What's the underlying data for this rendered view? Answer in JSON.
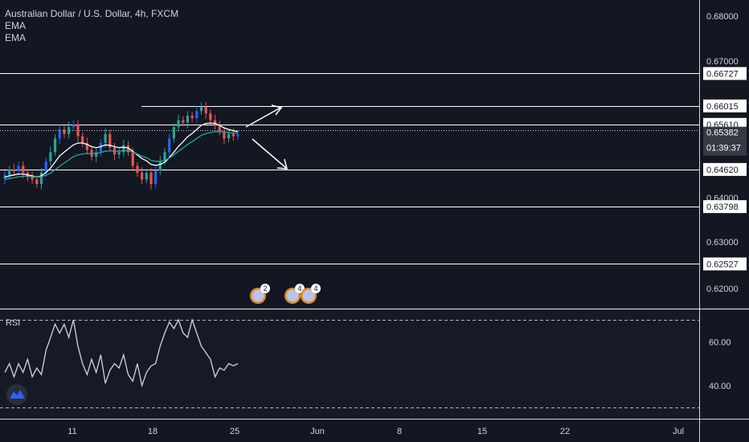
{
  "legend": {
    "title": "Australian Dollar / U.S. Dollar, 4h, FXCM",
    "indicator_1": "EMA",
    "indicator_2": "EMA"
  },
  "rsi_label": "RSI",
  "colors": {
    "background": "#131722",
    "bull": "#26a69a",
    "bear": "#ef5350",
    "bull_candle_alt": "#2962ff",
    "ema_fast": "#ffffff",
    "ema_slow": "#26a69a",
    "hline": "#ffffff",
    "rsi": "#d1d4dc"
  },
  "chart_data": [
    {
      "type": "candlestick",
      "title": "Australian Dollar / U.S. Dollar, 4h, FXCM",
      "ylim": [
        0.615,
        0.685
      ],
      "y_ticks": [
        "0.68000",
        "0.67000",
        "0.64000",
        "0.63000",
        "0.62000"
      ],
      "x_ticks": [
        "11",
        "18",
        "25",
        "Jun",
        "8",
        "15",
        "22",
        "Jul"
      ],
      "horizontal_levels": [
        "0.66727",
        "0.66015",
        "0.65610",
        "0.64620",
        "0.63798",
        "0.62527"
      ],
      "current_price": "0.65382",
      "countdown": "01:39:37",
      "closes": [
        0.645,
        0.6462,
        0.6458,
        0.647,
        0.6455,
        0.6445,
        0.644,
        0.643,
        0.6455,
        0.648,
        0.65,
        0.653,
        0.655,
        0.654,
        0.6555,
        0.656,
        0.6535,
        0.652,
        0.6505,
        0.649,
        0.65,
        0.652,
        0.654,
        0.651,
        0.6495,
        0.65,
        0.6515,
        0.65,
        0.647,
        0.6455,
        0.644,
        0.6455,
        0.643,
        0.646,
        0.648,
        0.65,
        0.653,
        0.6555,
        0.657,
        0.6565,
        0.658,
        0.6575,
        0.659,
        0.66,
        0.6585,
        0.657,
        0.656,
        0.6545,
        0.653,
        0.654,
        0.6535,
        0.6538
      ],
      "ema_fast": [
        0.6445,
        0.6448,
        0.645,
        0.6452,
        0.6452,
        0.645,
        0.6448,
        0.6445,
        0.6448,
        0.6455,
        0.6465,
        0.6478,
        0.6492,
        0.65,
        0.6508,
        0.6516,
        0.652,
        0.652,
        0.6517,
        0.6512,
        0.651,
        0.6512,
        0.6516,
        0.6515,
        0.6512,
        0.651,
        0.6511,
        0.6509,
        0.6502,
        0.6494,
        0.6486,
        0.6481,
        0.6473,
        0.6471,
        0.6473,
        0.6478,
        0.6488,
        0.65,
        0.6513,
        0.6523,
        0.6534,
        0.6541,
        0.655,
        0.6559,
        0.6563,
        0.6564,
        0.6563,
        0.6559,
        0.6553,
        0.655,
        0.6547,
        0.6545
      ],
      "ema_slow": [
        0.644,
        0.6442,
        0.6444,
        0.6446,
        0.6447,
        0.6447,
        0.6446,
        0.6445,
        0.6446,
        0.6449,
        0.6454,
        0.6461,
        0.6469,
        0.6476,
        0.6483,
        0.649,
        0.6494,
        0.6496,
        0.6497,
        0.6497,
        0.6497,
        0.6499,
        0.6502,
        0.6503,
        0.6502,
        0.6502,
        0.6503,
        0.6503,
        0.65,
        0.6496,
        0.6491,
        0.6488,
        0.6482,
        0.648,
        0.648,
        0.6482,
        0.6487,
        0.6494,
        0.6502,
        0.6509,
        0.6517,
        0.6523,
        0.653,
        0.6537,
        0.6541,
        0.6543,
        0.6545,
        0.6545,
        0.6544,
        0.6543,
        0.6542,
        0.6541
      ]
    },
    {
      "type": "line",
      "title": "RSI",
      "ylim": [
        25,
        75
      ],
      "y_ticks": [
        "60.00",
        "40.00"
      ],
      "bands": [
        70,
        30
      ],
      "values": [
        46,
        50,
        44,
        50,
        46,
        52,
        44,
        48,
        45,
        56,
        62,
        68,
        64,
        68,
        62,
        70,
        58,
        50,
        45,
        52,
        46,
        54,
        41,
        47,
        50,
        48,
        54,
        45,
        42,
        50,
        40,
        46,
        49,
        50,
        58,
        64,
        69,
        66,
        70,
        64,
        62,
        70,
        64,
        58,
        55,
        52,
        44,
        48,
        47,
        50,
        49,
        50
      ]
    }
  ]
}
